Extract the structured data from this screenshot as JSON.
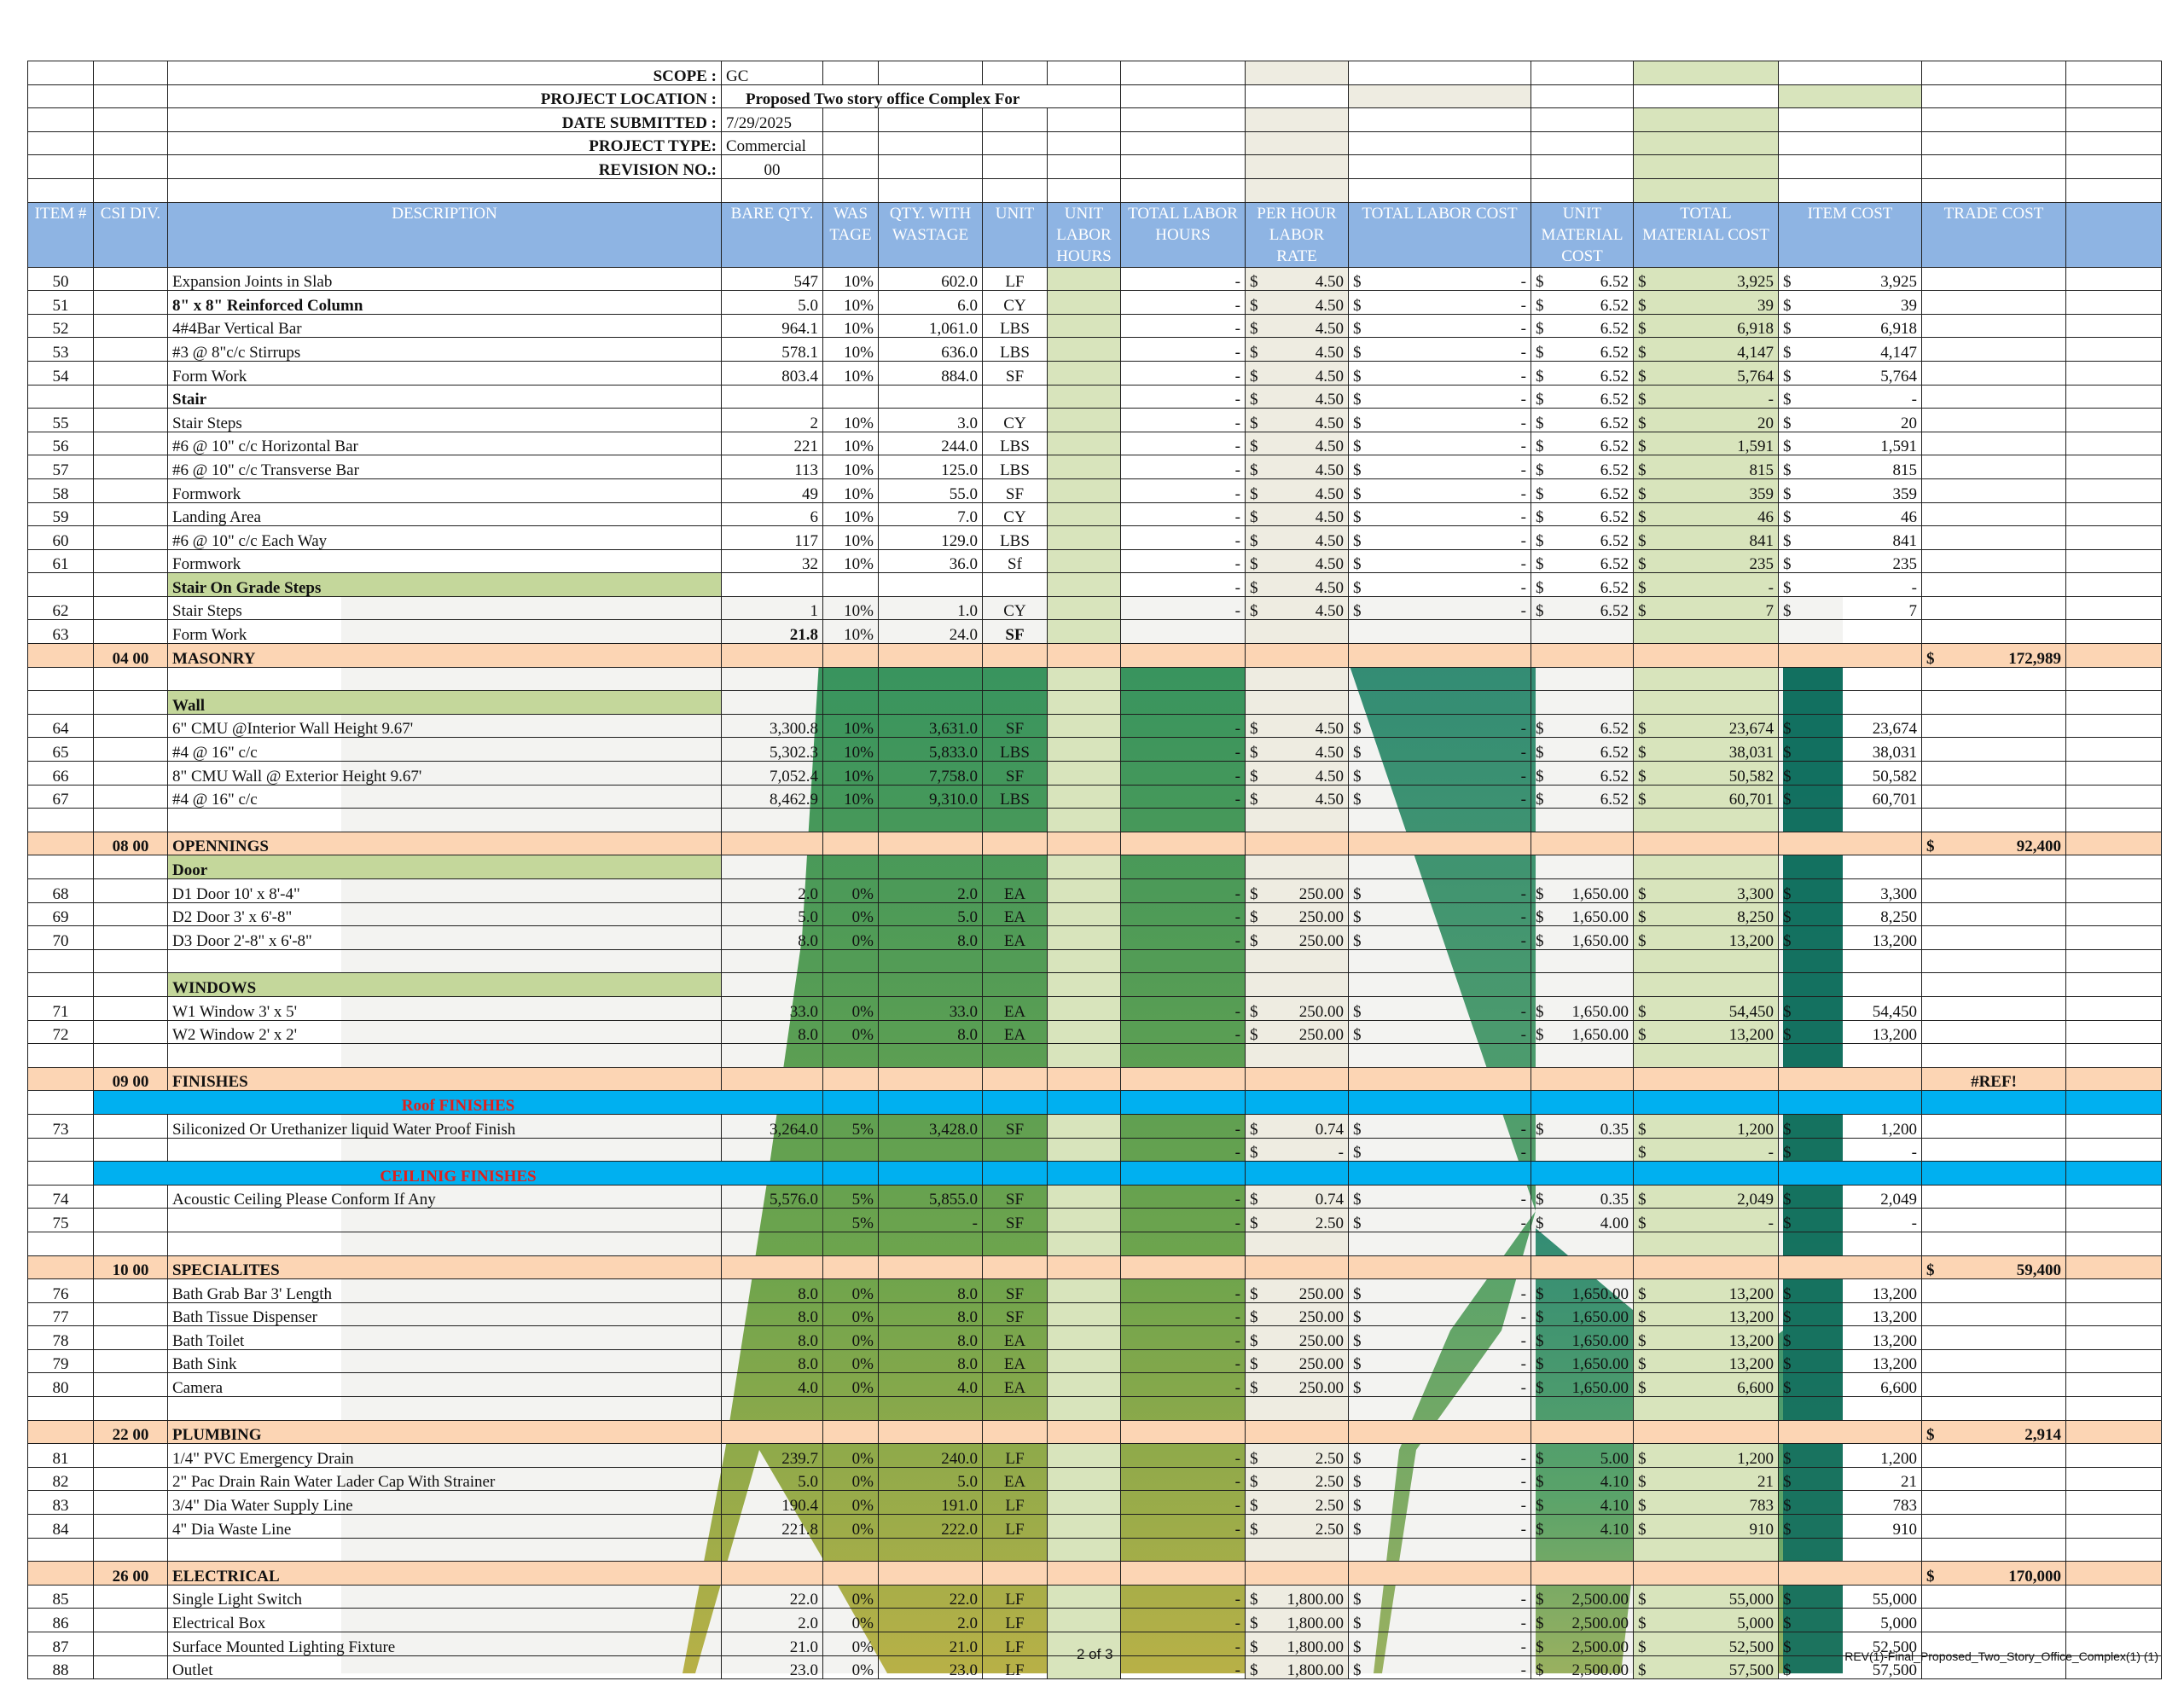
{
  "header": {
    "scope_label": "SCOPE :",
    "scope_value": "GC",
    "location_label": "PROJECT LOCATION :",
    "location_value": "Proposed Two story office Complex For",
    "date_label": "DATE SUBMITTED :",
    "date_value": "7/29/2025",
    "type_label": "PROJECT TYPE:",
    "type_value": "Commercial",
    "revision_label": "REVISION NO.:",
    "revision_value": "00"
  },
  "columns": [
    "ITEM #",
    "CSI DIV.",
    "DESCRIPTION",
    "BARE QTY.",
    "WAS TAGE",
    "QTY. WITH WASTAGE",
    "UNIT",
    "UNIT LABOR HOURS",
    "TOTAL LABOR HOURS",
    "PER HOUR LABOR RATE",
    "TOTAL LABOR COST",
    "UNIT MATERIAL COST",
    "TOTAL MATERIAL COST",
    "ITEM COST",
    "TRADE COST"
  ],
  "rows": [
    {
      "t": "i",
      "item": "50",
      "desc": "Expansion Joints in Slab",
      "bare": "547",
      "was": "10%",
      "qty": "602.0",
      "unit": "LF",
      "tlh": "-",
      "rate": "4.50",
      "tlc": "-",
      "umc": "6.52",
      "tmc": "3,925",
      "cost": "3,925"
    },
    {
      "t": "i",
      "item": "51",
      "desc": "8\" x 8\" Reinforced Column",
      "descBold": true,
      "bare": "5.0",
      "was": "10%",
      "qty": "6.0",
      "unit": "CY",
      "tlh": "-",
      "rate": "4.50",
      "tlc": "-",
      "umc": "6.52",
      "tmc": "39",
      "cost": "39"
    },
    {
      "t": "i",
      "item": "52",
      "desc": "4#4Bar Vertical Bar",
      "bare": "964.1",
      "was": "10%",
      "qty": "1,061.0",
      "unit": "LBS",
      "tlh": "-",
      "rate": "4.50",
      "tlc": "-",
      "umc": "6.52",
      "tmc": "6,918",
      "cost": "6,918"
    },
    {
      "t": "i",
      "item": "53",
      "desc": "#3 @ 8\"c/c Stirrups",
      "bare": "578.1",
      "was": "10%",
      "qty": "636.0",
      "unit": "LBS",
      "tlh": "-",
      "rate": "4.50",
      "tlc": "-",
      "umc": "6.52",
      "tmc": "4,147",
      "cost": "4,147"
    },
    {
      "t": "i",
      "item": "54",
      "desc": "Form Work",
      "bare": "803.4",
      "was": "10%",
      "qty": "884.0",
      "unit": "SF",
      "tlh": "-",
      "rate": "4.50",
      "tlc": "-",
      "umc": "6.52",
      "tmc": "5,764",
      "cost": "5,764"
    },
    {
      "t": "i",
      "item": "",
      "desc": "Stair",
      "descBold": true,
      "bare": "",
      "was": "",
      "qty": "",
      "unit": "",
      "tlh": "-",
      "rate": "4.50",
      "tlc": "-",
      "umc": "6.52",
      "tmc": "-",
      "cost": "-"
    },
    {
      "t": "i",
      "item": "55",
      "desc": "Stair Steps",
      "bare": "2",
      "was": "10%",
      "qty": "3.0",
      "unit": "CY",
      "tlh": "-",
      "rate": "4.50",
      "tlc": "-",
      "umc": "6.52",
      "tmc": "20",
      "cost": "20"
    },
    {
      "t": "i",
      "item": "56",
      "desc": "#6 @ 10\" c/c Horizontal Bar",
      "bare": "221",
      "was": "10%",
      "qty": "244.0",
      "unit": "LBS",
      "tlh": "-",
      "rate": "4.50",
      "tlc": "-",
      "umc": "6.52",
      "tmc": "1,591",
      "cost": "1,591"
    },
    {
      "t": "i",
      "item": "57",
      "desc": "#6 @ 10\" c/c Transverse Bar",
      "bare": "113",
      "was": "10%",
      "qty": "125.0",
      "unit": "LBS",
      "tlh": "-",
      "rate": "4.50",
      "tlc": "-",
      "umc": "6.52",
      "tmc": "815",
      "cost": "815"
    },
    {
      "t": "i",
      "item": "58",
      "desc": "Formwork",
      "bare": "49",
      "was": "10%",
      "qty": "55.0",
      "unit": "SF",
      "tlh": "-",
      "rate": "4.50",
      "tlc": "-",
      "umc": "6.52",
      "tmc": "359",
      "cost": "359"
    },
    {
      "t": "i",
      "item": "59",
      "desc": "Landing Area",
      "bare": "6",
      "was": "10%",
      "qty": "7.0",
      "unit": "CY",
      "tlh": "-",
      "rate": "4.50",
      "tlc": "-",
      "umc": "6.52",
      "tmc": "46",
      "cost": "46"
    },
    {
      "t": "i",
      "item": "60",
      "desc": "#6 @ 10\" c/c  Each Way",
      "bare": "117",
      "was": "10%",
      "qty": "129.0",
      "unit": "LBS",
      "tlh": "-",
      "rate": "4.50",
      "tlc": "-",
      "umc": "6.52",
      "tmc": "841",
      "cost": "841"
    },
    {
      "t": "i",
      "item": "61",
      "desc": "Formwork",
      "bare": "32",
      "was": "10%",
      "qty": "36.0",
      "unit": "Sf",
      "tlh": "-",
      "rate": "4.50",
      "tlc": "-",
      "umc": "6.52",
      "tmc": "235",
      "cost": "235"
    },
    {
      "t": "g",
      "desc": "Stair On Grade Steps",
      "tlh": "-",
      "rate": "4.50",
      "tlc": "-",
      "umc": "6.52",
      "tmc": "-",
      "cost": "-"
    },
    {
      "t": "i",
      "item": "62",
      "desc": "Stair Steps",
      "bare": "1",
      "was": "10%",
      "qty": "1.0",
      "unit": "CY",
      "tlh": "-",
      "rate": "4.50",
      "tlc": "-",
      "umc": "6.52",
      "tmc": "7",
      "cost": "7"
    },
    {
      "t": "i",
      "item": "63",
      "desc": "Form Work",
      "bare": "21.8",
      "bareBold": true,
      "was": "10%",
      "qty": "24.0",
      "unit": "SF",
      "unitBold": true
    },
    {
      "t": "d",
      "csi": "04 00",
      "desc": "MASONRY",
      "trade": "172,989"
    },
    {
      "t": "e"
    },
    {
      "t": "g",
      "desc": "Wall"
    },
    {
      "t": "i",
      "item": "64",
      "desc": "6\" CMU @Interior Wall Height 9.67'",
      "bare": "3,300.8",
      "was": "10%",
      "qty": "3,631.0",
      "unit": "SF",
      "tlh": "-",
      "rate": "4.50",
      "tlc": "-",
      "umc": "6.52",
      "tmc": "23,674",
      "cost": "23,674"
    },
    {
      "t": "i",
      "item": "65",
      "desc": "#4 @ 16\" c/c",
      "bare": "5,302.3",
      "was": "10%",
      "qty": "5,833.0",
      "unit": "LBS",
      "tlh": "-",
      "rate": "4.50",
      "tlc": "-",
      "umc": "6.52",
      "tmc": "38,031",
      "cost": "38,031"
    },
    {
      "t": "i",
      "item": "66",
      "desc": "8\" CMU Wall @ Exterior  Height 9.67'",
      "bare": "7,052.4",
      "was": "10%",
      "qty": "7,758.0",
      "unit": "SF",
      "tlh": "-",
      "rate": "4.50",
      "tlc": "-",
      "umc": "6.52",
      "tmc": "50,582",
      "cost": "50,582"
    },
    {
      "t": "i",
      "item": "67",
      "desc": "#4 @ 16\" c/c",
      "bare": "8,462.9",
      "was": "10%",
      "qty": "9,310.0",
      "unit": "LBS",
      "tlh": "-",
      "rate": "4.50",
      "tlc": "-",
      "umc": "6.52",
      "tmc": "60,701",
      "cost": "60,701"
    },
    {
      "t": "e"
    },
    {
      "t": "d",
      "csi": "08 00",
      "desc": "OPENNINGS",
      "trade": "92,400"
    },
    {
      "t": "g",
      "desc": "Door"
    },
    {
      "t": "i",
      "item": "68",
      "desc": "D1 Door 10' x 8'-4\"",
      "bare": "2.0",
      "was": "0%",
      "qty": "2.0",
      "unit": "EA",
      "tlh": "-",
      "rate": "250.00",
      "tlc": "-",
      "umc": "1,650.00",
      "tmc": "3,300",
      "cost": "3,300"
    },
    {
      "t": "i",
      "item": "69",
      "desc": "D2 Door 3' x 6'-8\"",
      "bare": "5.0",
      "was": "0%",
      "qty": "5.0",
      "unit": "EA",
      "tlh": "-",
      "rate": "250.00",
      "tlc": "-",
      "umc": "1,650.00",
      "tmc": "8,250",
      "cost": "8,250"
    },
    {
      "t": "i",
      "item": "70",
      "desc": "D3 Door 2'-8\" x 6'-8\"",
      "bare": "8.0",
      "was": "0%",
      "qty": "8.0",
      "unit": "EA",
      "tlh": "-",
      "rate": "250.00",
      "tlc": "-",
      "umc": "1,650.00",
      "tmc": "13,200",
      "cost": "13,200"
    },
    {
      "t": "e"
    },
    {
      "t": "g",
      "desc": "WINDOWS"
    },
    {
      "t": "i",
      "item": "71",
      "desc": "W1 Window 3' x 5'",
      "bare": "33.0",
      "was": "0%",
      "qty": "33.0",
      "unit": "EA",
      "tlh": "-",
      "rate": "250.00",
      "tlc": "-",
      "umc": "1,650.00",
      "tmc": "54,450",
      "cost": "54,450"
    },
    {
      "t": "i",
      "item": "72",
      "desc": "W2 Window 2' x 2'",
      "bare": "8.0",
      "was": "0%",
      "qty": "8.0",
      "unit": "EA",
      "tlh": "-",
      "rate": "250.00",
      "tlc": "-",
      "umc": "1,650.00",
      "tmc": "13,200",
      "cost": "13,200"
    },
    {
      "t": "e"
    },
    {
      "t": "d",
      "csi": "09 00",
      "desc": "FINISHES",
      "trade": "#REF!",
      "tradePlain": true
    },
    {
      "t": "s",
      "desc": "Roof FINISHES"
    },
    {
      "t": "i",
      "item": "73",
      "desc": "Siliconized Or Urethanizer liquid Water Proof Finish",
      "bare": "3,264.0",
      "was": "5%",
      "qty": "3,428.0",
      "unit": "SF",
      "tlh": "-",
      "rate": "0.74",
      "tlc": "-",
      "umc": "0.35",
      "tmc": "1,200",
      "cost": "1,200"
    },
    {
      "t": "i",
      "item": "",
      "desc": "",
      "bare": "",
      "was": "",
      "qty": "",
      "unit": "",
      "tlh": "-",
      "rate": "-",
      "tlc": "-",
      "umc": "",
      "tmc": "-",
      "cost": "-"
    },
    {
      "t": "s",
      "desc": "CEILINIG FINISHES"
    },
    {
      "t": "i",
      "item": "74",
      "desc": "Acoustic Ceiling Please Conform If Any",
      "bare": "5,576.0",
      "was": "5%",
      "qty": "5,855.0",
      "unit": "SF",
      "tlh": "-",
      "rate": "0.74",
      "tlc": "-",
      "umc": "0.35",
      "tmc": "2,049",
      "cost": "2,049"
    },
    {
      "t": "i",
      "item": "75",
      "desc": "",
      "bare": "",
      "was": "5%",
      "qty": "-",
      "unit": "SF",
      "tlh": "-",
      "rate": "2.50",
      "tlc": "-",
      "umc": "4.00",
      "tmc": "-",
      "cost": "-"
    },
    {
      "t": "e"
    },
    {
      "t": "d",
      "csi": "10 00",
      "desc": "SPECIALITES",
      "trade": "59,400"
    },
    {
      "t": "i",
      "item": "76",
      "desc": "Bath Grab Bar 3' Length",
      "bare": "8.0",
      "was": "0%",
      "qty": "8.0",
      "unit": "SF",
      "tlh": "-",
      "rate": "250.00",
      "tlc": "-",
      "umc": "1,650.00",
      "tmc": "13,200",
      "cost": "13,200"
    },
    {
      "t": "i",
      "item": "77",
      "desc": "Bath Tissue Dispenser",
      "bare": "8.0",
      "was": "0%",
      "qty": "8.0",
      "unit": "SF",
      "tlh": "-",
      "rate": "250.00",
      "tlc": "-",
      "umc": "1,650.00",
      "tmc": "13,200",
      "cost": "13,200"
    },
    {
      "t": "i",
      "item": "78",
      "desc": "Bath Toilet",
      "bare": "8.0",
      "was": "0%",
      "qty": "8.0",
      "unit": "EA",
      "tlh": "-",
      "rate": "250.00",
      "tlc": "-",
      "umc": "1,650.00",
      "tmc": "13,200",
      "cost": "13,200"
    },
    {
      "t": "i",
      "item": "79",
      "desc": "Bath Sink",
      "bare": "8.0",
      "was": "0%",
      "qty": "8.0",
      "unit": "EA",
      "tlh": "-",
      "rate": "250.00",
      "tlc": "-",
      "umc": "1,650.00",
      "tmc": "13,200",
      "cost": "13,200"
    },
    {
      "t": "i",
      "item": "80",
      "desc": "Camera",
      "bare": "4.0",
      "was": "0%",
      "qty": "4.0",
      "unit": "EA",
      "tlh": "-",
      "rate": "250.00",
      "tlc": "-",
      "umc": "1,650.00",
      "tmc": "6,600",
      "cost": "6,600"
    },
    {
      "t": "e"
    },
    {
      "t": "d",
      "csi": "22 00",
      "desc": "PLUMBING",
      "trade": "2,914"
    },
    {
      "t": "i",
      "item": "81",
      "desc": "1/4\" PVC Emergency Drain",
      "bare": "239.7",
      "was": "0%",
      "qty": "240.0",
      "unit": "LF",
      "tlh": "-",
      "rate": "2.50",
      "tlc": "-",
      "umc": "5.00",
      "tmc": "1,200",
      "cost": "1,200"
    },
    {
      "t": "i",
      "item": "82",
      "desc": "2\" Pac Drain Rain Water Lader Cap With Strainer",
      "bare": "5.0",
      "was": "0%",
      "qty": "5.0",
      "unit": "EA",
      "tlh": "-",
      "rate": "2.50",
      "tlc": "-",
      "umc": "4.10",
      "tmc": "21",
      "cost": "21"
    },
    {
      "t": "i",
      "item": "83",
      "desc": "3/4\" Dia Water Supply Line",
      "bare": "190.4",
      "was": "0%",
      "qty": "191.0",
      "unit": "LF",
      "tlh": "-",
      "rate": "2.50",
      "tlc": "-",
      "umc": "4.10",
      "tmc": "783",
      "cost": "783"
    },
    {
      "t": "i",
      "item": "84",
      "desc": "4\" Dia Waste Line",
      "bare": "221.8",
      "was": "0%",
      "qty": "222.0",
      "unit": "LF",
      "tlh": "-",
      "rate": "2.50",
      "tlc": "-",
      "umc": "4.10",
      "tmc": "910",
      "cost": "910"
    },
    {
      "t": "e"
    },
    {
      "t": "d",
      "csi": "26 00",
      "desc": "ELECTRICAL",
      "trade": "170,000"
    },
    {
      "t": "i",
      "item": "85",
      "desc": "Single Light Switch",
      "bare": "22.0",
      "was": "0%",
      "qty": "22.0",
      "unit": "LF",
      "tlh": "-",
      "rate": "1,800.00",
      "tlc": "-",
      "umc": "2,500.00",
      "tmc": "55,000",
      "cost": "55,000"
    },
    {
      "t": "i",
      "item": "86",
      "desc": "Electrical Box",
      "bare": "2.0",
      "was": "0%",
      "qty": "2.0",
      "unit": "LF",
      "tlh": "-",
      "rate": "1,800.00",
      "tlc": "-",
      "umc": "2,500.00",
      "tmc": "5,000",
      "cost": "5,000"
    },
    {
      "t": "i",
      "item": "87",
      "desc": "Surface Mounted Lighting Fixture",
      "bare": "21.0",
      "was": "0%",
      "qty": "21.0",
      "unit": "LF",
      "tlh": "-",
      "rate": "1,800.00",
      "tlc": "-",
      "umc": "2,500.00",
      "tmc": "52,500",
      "cost": "52,500"
    },
    {
      "t": "i",
      "item": "88",
      "desc": "Outlet",
      "bare": "23.0",
      "was": "0%",
      "qty": "23.0",
      "unit": "LF",
      "tlh": "-",
      "rate": "1,800.00",
      "tlc": "-",
      "umc": "2,500.00",
      "tmc": "57,500",
      "cost": "57,500"
    }
  ],
  "currency_symbol": "$",
  "footer": {
    "page": "2 of 3",
    "file": "REV(1)-Final_Proposed_Two_Story_Office_Complex(1) (1)"
  },
  "colors": {
    "header_blue": "#8eb4e3",
    "division_orange": "#fcd5b4",
    "subsection_blue": "#00b0f0",
    "group_green": "#c4d79b",
    "labor_hours_green": "#d8e4bc",
    "labor_rate_tan": "#eeece1",
    "subsection_text_red": "#e0201c"
  }
}
